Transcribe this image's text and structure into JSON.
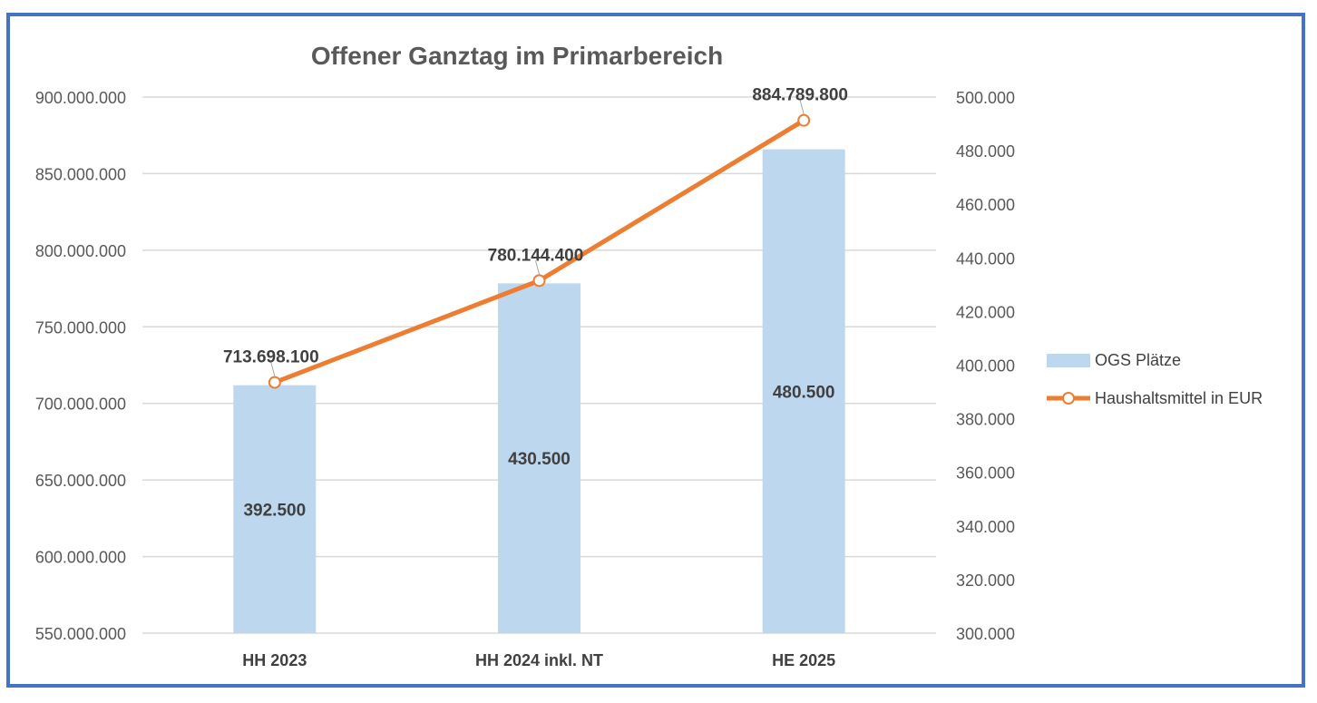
{
  "chart_data": {
    "type": "bar+line",
    "title": "Offener Ganztag im Primarbereich",
    "categories": [
      "HH 2023",
      "HH 2024 inkl. NT",
      "HE 2025"
    ],
    "series": [
      {
        "name": "OGS Plätze",
        "type": "bar",
        "axis": "right",
        "values": [
          392500,
          430500,
          480500
        ],
        "labels": [
          "392.500",
          "430.500",
          "480.500"
        ],
        "color": "#BDD7EE"
      },
      {
        "name": "Haushaltsmittel in EUR",
        "type": "line",
        "axis": "left",
        "values": [
          713698100,
          780144400,
          884789800
        ],
        "labels": [
          "713.698.100",
          "780.144.400",
          "884.789.800"
        ],
        "color": "#ED7D31"
      }
    ],
    "y_left": {
      "min": 550000000,
      "max": 900000000,
      "step": 50000000,
      "ticks": [
        "550.000.000",
        "600.000.000",
        "650.000.000",
        "700.000.000",
        "750.000.000",
        "800.000.000",
        "850.000.000",
        "900.000.000"
      ]
    },
    "y_right": {
      "min": 300000,
      "max": 500000,
      "step": 20000,
      "ticks": [
        "300.000",
        "320.000",
        "340.000",
        "360.000",
        "380.000",
        "400.000",
        "420.000",
        "440.000",
        "460.000",
        "480.000",
        "500.000"
      ]
    },
    "grid": true,
    "legend": "right",
    "border_color": "#4472C4",
    "grid_color": "#D9D9D9"
  }
}
